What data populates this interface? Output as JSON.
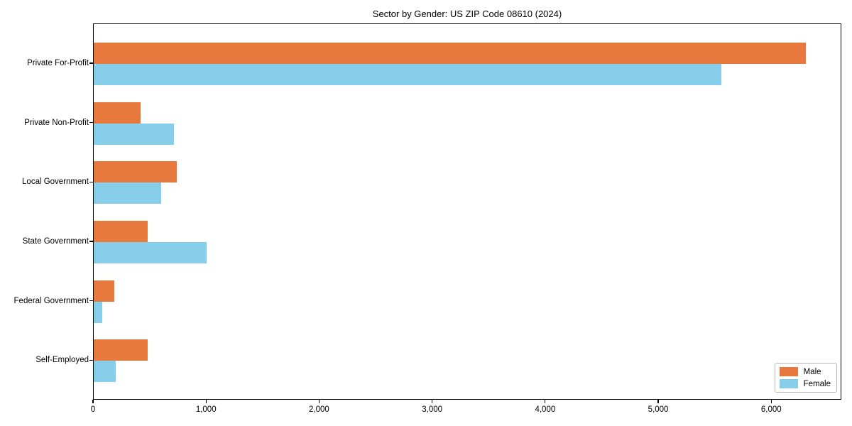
{
  "chart_data": {
    "type": "bar",
    "orientation": "horizontal",
    "title": "Sector by Gender: US ZIP Code 08610 (2024)",
    "categories": [
      "Private For-Profit",
      "Private Non-Profit",
      "Local Government",
      "State Government",
      "Federal Government",
      "Self-Employed"
    ],
    "series": [
      {
        "name": "Male",
        "color": "#e8793e",
        "values": [
          6310,
          415,
          735,
          480,
          180,
          480
        ]
      },
      {
        "name": "Female",
        "color": "#87ceeb",
        "values": [
          5560,
          710,
          600,
          1000,
          75,
          195
        ]
      }
    ],
    "xlabel": "",
    "ylabel": "",
    "xlim": [
      0,
      6620
    ],
    "xticks": [
      0,
      1000,
      2000,
      3000,
      4000,
      5000,
      6000
    ],
    "xtick_labels": [
      "0",
      "1,000",
      "2,000",
      "3,000",
      "4,000",
      "5,000",
      "6,000"
    ],
    "grid": false,
    "legend": {
      "position": "lower right",
      "entries": [
        "Male",
        "Female"
      ]
    }
  }
}
